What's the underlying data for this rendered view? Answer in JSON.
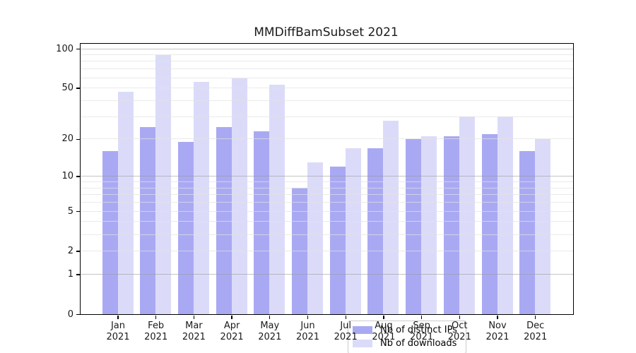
{
  "title": "MMDiffBamSubset 2021",
  "chart_data": {
    "type": "bar",
    "title": "MMDiffBamSubset 2021",
    "categories": [
      "Jan",
      "Feb",
      "Mar",
      "Apr",
      "May",
      "Jun",
      "Jul",
      "Aug",
      "Sep",
      "Oct",
      "Nov",
      "Dec"
    ],
    "year": "2021",
    "series": [
      {
        "name": "Nb of distinct IPs",
        "color": "#a9a9f3",
        "values": [
          16,
          25,
          19,
          25,
          23,
          8,
          12,
          17,
          20,
          21,
          22,
          16
        ]
      },
      {
        "name": "Nb of downloads",
        "color": "#dbdbf9",
        "values": [
          47,
          89,
          56,
          59,
          53,
          13,
          17,
          28,
          21,
          30,
          30,
          20
        ]
      }
    ],
    "xlabel": "",
    "ylabel": "",
    "yscale": "log1p",
    "ylim": [
      0,
      109
    ],
    "y_tick_values": [
      0,
      1,
      2,
      5,
      10,
      20,
      50,
      100
    ],
    "y_tick_labels": [
      "0",
      "1",
      "2",
      "5",
      "10",
      "20",
      "50",
      "100"
    ],
    "grid": {
      "on": true,
      "major_values": [
        1,
        10,
        100
      ],
      "minor_values": [
        2,
        3,
        4,
        5,
        6,
        7,
        8,
        9,
        20,
        30,
        40,
        50,
        60,
        70,
        80,
        90
      ],
      "major_color": "rgba(150,150,150,0.55)",
      "minor_color": "rgba(225,225,225,0.7)"
    },
    "legend": {
      "position": "lower center",
      "entries": [
        "Nb of distinct IPs",
        "Nb of downloads"
      ]
    }
  }
}
